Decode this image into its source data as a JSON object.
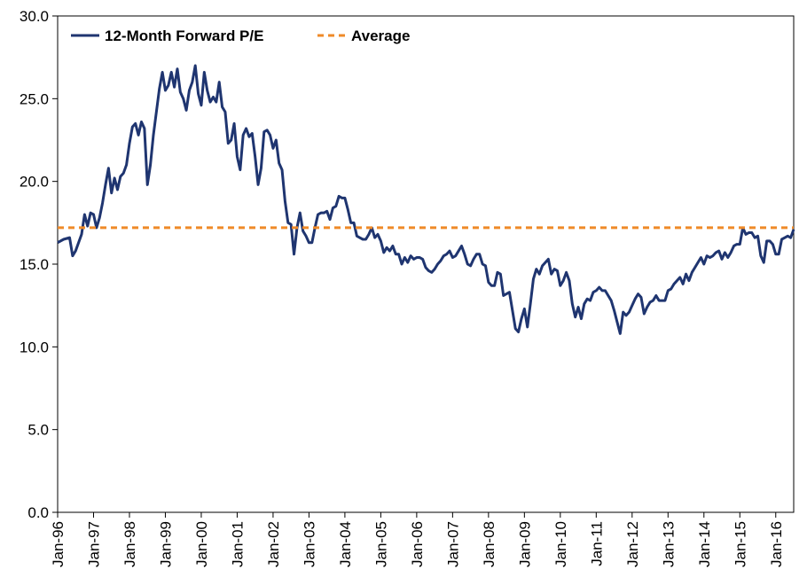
{
  "chart_data": {
    "type": "line",
    "title": "",
    "xlabel": "",
    "ylabel": "",
    "ylim": [
      0,
      30
    ],
    "y_ticks": [
      "0.0",
      "5.0",
      "10.0",
      "15.0",
      "20.0",
      "25.0",
      "30.0"
    ],
    "x_ticks": [
      "Jan-96",
      "Jan-97",
      "Jan-98",
      "Jan-99",
      "Jan-00",
      "Jan-01",
      "Jan-02",
      "Jan-03",
      "Jan-04",
      "Jan-05",
      "Jan-06",
      "Jan-07",
      "Jan-08",
      "Jan-09",
      "Jan-10",
      "Jan-11",
      "Jan-12",
      "Jan-13",
      "Jan-14",
      "Jan-15",
      "Jan-16"
    ],
    "x_range": [
      "1996-01",
      "2016-07"
    ],
    "grid": false,
    "legend_position": "top-left",
    "series": [
      {
        "name": "12-Month Forward P/E",
        "color": "#1f3570",
        "style": "solid",
        "points": [
          [
            "1996-01",
            16.3
          ],
          [
            "1996-03",
            16.5
          ],
          [
            "1996-05",
            16.6
          ],
          [
            "1996-06",
            15.5
          ],
          [
            "1996-07",
            15.8
          ],
          [
            "1996-09",
            16.8
          ],
          [
            "1996-10",
            18.0
          ],
          [
            "1996-11",
            17.3
          ],
          [
            "1996-12",
            18.1
          ],
          [
            "1997-01",
            18.0
          ],
          [
            "1997-02",
            17.2
          ],
          [
            "1997-03",
            17.8
          ],
          [
            "1997-04",
            18.7
          ],
          [
            "1997-05",
            19.8
          ],
          [
            "1997-06",
            20.8
          ],
          [
            "1997-07",
            19.3
          ],
          [
            "1997-08",
            20.2
          ],
          [
            "1997-09",
            19.5
          ],
          [
            "1997-10",
            20.3
          ],
          [
            "1997-11",
            20.5
          ],
          [
            "1997-12",
            21.0
          ],
          [
            "1998-01",
            22.3
          ],
          [
            "1998-02",
            23.3
          ],
          [
            "1998-03",
            23.5
          ],
          [
            "1998-04",
            22.8
          ],
          [
            "1998-05",
            23.6
          ],
          [
            "1998-06",
            23.2
          ],
          [
            "1998-07",
            19.8
          ],
          [
            "1998-08",
            21.0
          ],
          [
            "1998-09",
            22.8
          ],
          [
            "1998-10",
            24.2
          ],
          [
            "1998-11",
            25.6
          ],
          [
            "1998-12",
            26.6
          ],
          [
            "1999-01",
            25.5
          ],
          [
            "1999-02",
            25.8
          ],
          [
            "1999-03",
            26.6
          ],
          [
            "1999-04",
            25.7
          ],
          [
            "1999-05",
            26.8
          ],
          [
            "1999-06",
            25.4
          ],
          [
            "1999-07",
            25.0
          ],
          [
            "1999-08",
            24.3
          ],
          [
            "1999-09",
            25.5
          ],
          [
            "1999-10",
            26.0
          ],
          [
            "1999-11",
            27.0
          ],
          [
            "1999-12",
            25.3
          ],
          [
            "2000-01",
            24.6
          ],
          [
            "2000-02",
            26.6
          ],
          [
            "2000-03",
            25.5
          ],
          [
            "2000-04",
            24.8
          ],
          [
            "2000-05",
            25.1
          ],
          [
            "2000-06",
            24.8
          ],
          [
            "2000-07",
            26.0
          ],
          [
            "2000-08",
            24.5
          ],
          [
            "2000-09",
            24.2
          ],
          [
            "2000-10",
            22.3
          ],
          [
            "2000-11",
            22.5
          ],
          [
            "2000-12",
            23.5
          ],
          [
            "2001-01",
            21.5
          ],
          [
            "2001-02",
            20.7
          ],
          [
            "2001-03",
            22.8
          ],
          [
            "2001-04",
            23.2
          ],
          [
            "2001-05",
            22.7
          ],
          [
            "2001-06",
            22.9
          ],
          [
            "2001-07",
            21.5
          ],
          [
            "2001-08",
            19.8
          ],
          [
            "2001-09",
            20.8
          ],
          [
            "2001-10",
            23.0
          ],
          [
            "2001-11",
            23.1
          ],
          [
            "2001-12",
            22.8
          ],
          [
            "2002-01",
            22.0
          ],
          [
            "2002-02",
            22.5
          ],
          [
            "2002-03",
            21.1
          ],
          [
            "2002-04",
            20.7
          ],
          [
            "2002-05",
            18.8
          ],
          [
            "2002-06",
            17.5
          ],
          [
            "2002-07",
            17.4
          ],
          [
            "2002-08",
            15.6
          ],
          [
            "2002-09",
            17.2
          ],
          [
            "2002-10",
            18.1
          ],
          [
            "2002-11",
            17.0
          ],
          [
            "2002-12",
            16.7
          ],
          [
            "2003-01",
            16.3
          ],
          [
            "2003-02",
            16.3
          ],
          [
            "2003-03",
            17.2
          ],
          [
            "2003-04",
            18.0
          ],
          [
            "2003-05",
            18.1
          ],
          [
            "2003-06",
            18.1
          ],
          [
            "2003-07",
            18.2
          ],
          [
            "2003-08",
            17.7
          ],
          [
            "2003-09",
            18.4
          ],
          [
            "2003-10",
            18.5
          ],
          [
            "2003-11",
            19.1
          ],
          [
            "2003-12",
            19.0
          ],
          [
            "2004-01",
            19.0
          ],
          [
            "2004-02",
            18.3
          ],
          [
            "2004-03",
            17.5
          ],
          [
            "2004-04",
            17.5
          ],
          [
            "2004-05",
            16.7
          ],
          [
            "2004-06",
            16.6
          ],
          [
            "2004-07",
            16.5
          ],
          [
            "2004-08",
            16.5
          ],
          [
            "2004-09",
            16.8
          ],
          [
            "2004-10",
            17.2
          ],
          [
            "2004-11",
            16.6
          ],
          [
            "2004-12",
            16.8
          ],
          [
            "2005-01",
            16.4
          ],
          [
            "2005-02",
            15.7
          ],
          [
            "2005-03",
            16.0
          ],
          [
            "2005-04",
            15.8
          ],
          [
            "2005-05",
            16.1
          ],
          [
            "2005-06",
            15.6
          ],
          [
            "2005-07",
            15.6
          ],
          [
            "2005-08",
            15.0
          ],
          [
            "2005-09",
            15.4
          ],
          [
            "2005-10",
            15.1
          ],
          [
            "2005-11",
            15.5
          ],
          [
            "2005-12",
            15.3
          ],
          [
            "2006-01",
            15.4
          ],
          [
            "2006-02",
            15.4
          ],
          [
            "2006-03",
            15.3
          ],
          [
            "2006-04",
            14.8
          ],
          [
            "2006-05",
            14.6
          ],
          [
            "2006-06",
            14.5
          ],
          [
            "2006-07",
            14.7
          ],
          [
            "2006-08",
            15.0
          ],
          [
            "2006-09",
            15.2
          ],
          [
            "2006-10",
            15.5
          ],
          [
            "2006-11",
            15.6
          ],
          [
            "2006-12",
            15.8
          ],
          [
            "2007-01",
            15.4
          ],
          [
            "2007-02",
            15.5
          ],
          [
            "2007-03",
            15.8
          ],
          [
            "2007-04",
            16.1
          ],
          [
            "2007-05",
            15.6
          ],
          [
            "2007-06",
            15.0
          ],
          [
            "2007-07",
            14.9
          ],
          [
            "2007-08",
            15.3
          ],
          [
            "2007-09",
            15.6
          ],
          [
            "2007-10",
            15.6
          ],
          [
            "2007-11",
            15.0
          ],
          [
            "2007-12",
            14.9
          ],
          [
            "2008-01",
            13.9
          ],
          [
            "2008-02",
            13.7
          ],
          [
            "2008-03",
            13.7
          ],
          [
            "2008-04",
            14.5
          ],
          [
            "2008-05",
            14.4
          ],
          [
            "2008-06",
            13.1
          ],
          [
            "2008-07",
            13.2
          ],
          [
            "2008-08",
            13.3
          ],
          [
            "2008-09",
            12.2
          ],
          [
            "2008-10",
            11.1
          ],
          [
            "2008-11",
            10.9
          ],
          [
            "2008-12",
            11.7
          ],
          [
            "2009-01",
            12.3
          ],
          [
            "2009-02",
            11.2
          ],
          [
            "2009-03",
            12.6
          ],
          [
            "2009-04",
            14.1
          ],
          [
            "2009-05",
            14.7
          ],
          [
            "2009-06",
            14.4
          ],
          [
            "2009-07",
            14.9
          ],
          [
            "2009-08",
            15.1
          ],
          [
            "2009-09",
            15.3
          ],
          [
            "2009-10",
            14.4
          ],
          [
            "2009-11",
            14.7
          ],
          [
            "2009-12",
            14.6
          ],
          [
            "2010-01",
            13.7
          ],
          [
            "2010-02",
            14.0
          ],
          [
            "2010-03",
            14.5
          ],
          [
            "2010-04",
            14.0
          ],
          [
            "2010-05",
            12.6
          ],
          [
            "2010-06",
            11.8
          ],
          [
            "2010-07",
            12.4
          ],
          [
            "2010-08",
            11.7
          ],
          [
            "2010-09",
            12.6
          ],
          [
            "2010-10",
            12.9
          ],
          [
            "2010-11",
            12.8
          ],
          [
            "2010-12",
            13.3
          ],
          [
            "2011-01",
            13.4
          ],
          [
            "2011-02",
            13.6
          ],
          [
            "2011-03",
            13.4
          ],
          [
            "2011-04",
            13.4
          ],
          [
            "2011-05",
            13.1
          ],
          [
            "2011-06",
            12.8
          ],
          [
            "2011-07",
            12.2
          ],
          [
            "2011-08",
            11.5
          ],
          [
            "2011-09",
            10.8
          ],
          [
            "2011-10",
            12.1
          ],
          [
            "2011-11",
            11.9
          ],
          [
            "2011-12",
            12.1
          ],
          [
            "2012-01",
            12.5
          ],
          [
            "2012-02",
            12.9
          ],
          [
            "2012-03",
            13.2
          ],
          [
            "2012-04",
            13.0
          ],
          [
            "2012-05",
            12.0
          ],
          [
            "2012-06",
            12.4
          ],
          [
            "2012-07",
            12.7
          ],
          [
            "2012-08",
            12.8
          ],
          [
            "2012-09",
            13.1
          ],
          [
            "2012-10",
            12.8
          ],
          [
            "2012-11",
            12.8
          ],
          [
            "2012-12",
            12.8
          ],
          [
            "2013-01",
            13.4
          ],
          [
            "2013-02",
            13.5
          ],
          [
            "2013-03",
            13.8
          ],
          [
            "2013-04",
            14.0
          ],
          [
            "2013-05",
            14.2
          ],
          [
            "2013-06",
            13.8
          ],
          [
            "2013-07",
            14.4
          ],
          [
            "2013-08",
            14.0
          ],
          [
            "2013-09",
            14.5
          ],
          [
            "2013-10",
            14.8
          ],
          [
            "2013-11",
            15.1
          ],
          [
            "2013-12",
            15.4
          ],
          [
            "2014-01",
            15.0
          ],
          [
            "2014-02",
            15.5
          ],
          [
            "2014-03",
            15.4
          ],
          [
            "2014-04",
            15.5
          ],
          [
            "2014-05",
            15.7
          ],
          [
            "2014-06",
            15.8
          ],
          [
            "2014-07",
            15.3
          ],
          [
            "2014-08",
            15.7
          ],
          [
            "2014-09",
            15.4
          ],
          [
            "2014-10",
            15.7
          ],
          [
            "2014-11",
            16.1
          ],
          [
            "2014-12",
            16.2
          ],
          [
            "2015-01",
            16.2
          ],
          [
            "2015-02",
            17.2
          ],
          [
            "2015-03",
            16.8
          ],
          [
            "2015-04",
            16.9
          ],
          [
            "2015-05",
            16.9
          ],
          [
            "2015-06",
            16.6
          ],
          [
            "2015-07",
            16.7
          ],
          [
            "2015-08",
            15.5
          ],
          [
            "2015-09",
            15.1
          ],
          [
            "2015-10",
            16.4
          ],
          [
            "2015-11",
            16.4
          ],
          [
            "2015-12",
            16.2
          ],
          [
            "2016-01",
            15.6
          ],
          [
            "2016-02",
            15.6
          ],
          [
            "2016-03",
            16.5
          ],
          [
            "2016-04",
            16.6
          ],
          [
            "2016-05",
            16.7
          ],
          [
            "2016-06",
            16.6
          ],
          [
            "2016-07",
            17.1
          ]
        ]
      },
      {
        "name": "Average",
        "color": "#ef8a28",
        "style": "dashed",
        "points": [
          [
            "1996-01",
            17.2
          ],
          [
            "2016-07",
            17.2
          ]
        ]
      }
    ]
  }
}
